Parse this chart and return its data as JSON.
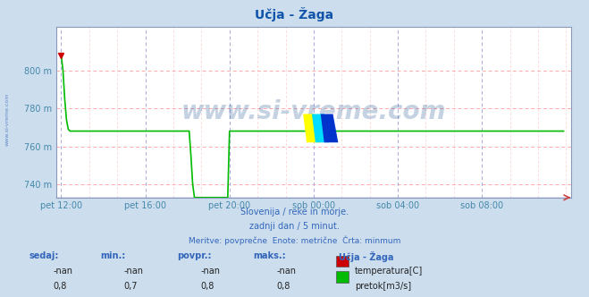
{
  "title": "Učja - Žaga",
  "title_color": "#1155aa",
  "bg_color": "#ccdded",
  "plot_bg_color": "#ffffff",
  "watermark": "www.si-vreme.com",
  "watermark_color": "#1a4d8f",
  "watermark_alpha": 0.25,
  "ylabel_color": "#4488aa",
  "xlabel_color": "#4488aa",
  "ytick_labels": [
    "740 m",
    "760 m",
    "780 m",
    "800 m"
  ],
  "ytick_values": [
    740,
    760,
    780,
    800
  ],
  "ylim": [
    733,
    823
  ],
  "xtick_labels": [
    "pet 12:00",
    "pet 16:00",
    "pet 20:00",
    "sob 00:00",
    "sob 04:00",
    "sob 08:00"
  ],
  "xtick_values": [
    0,
    48,
    96,
    144,
    192,
    240
  ],
  "xlim": [
    -3,
    291
  ],
  "grid_color_h": "#ffaaaa",
  "grid_color_v": "#aaaadd",
  "flow_color": "#00bb00",
  "temp_color": "#cc0000",
  "subtitle_lines": [
    "Slovenija / reke in morje.",
    "zadnji dan / 5 minut.",
    "Meritve: povprečne  Enote: metrične  Črta: minmum"
  ],
  "subtitle_color": "#3366bb",
  "legend_title": "Učja - Žaga",
  "legend_rows": [
    {
      "color": "#cc0000",
      "label": "temperatura[C]",
      "sedaj": "-nan",
      "min": "-nan",
      "povpr": "-nan",
      "maks": "-nan"
    },
    {
      "color": "#00bb00",
      "label": "pretok[m3/s]",
      "sedaj": "0,8",
      "min": "0,7",
      "povpr": "0,8",
      "maks": "0,8"
    }
  ],
  "table_headers": [
    "sedaj:",
    "min.:",
    "povpr.:",
    "maks.:"
  ],
  "left_label": "www.si-vreme.com",
  "left_label_color": "#3366bb",
  "arrow_color": "#cc4444"
}
